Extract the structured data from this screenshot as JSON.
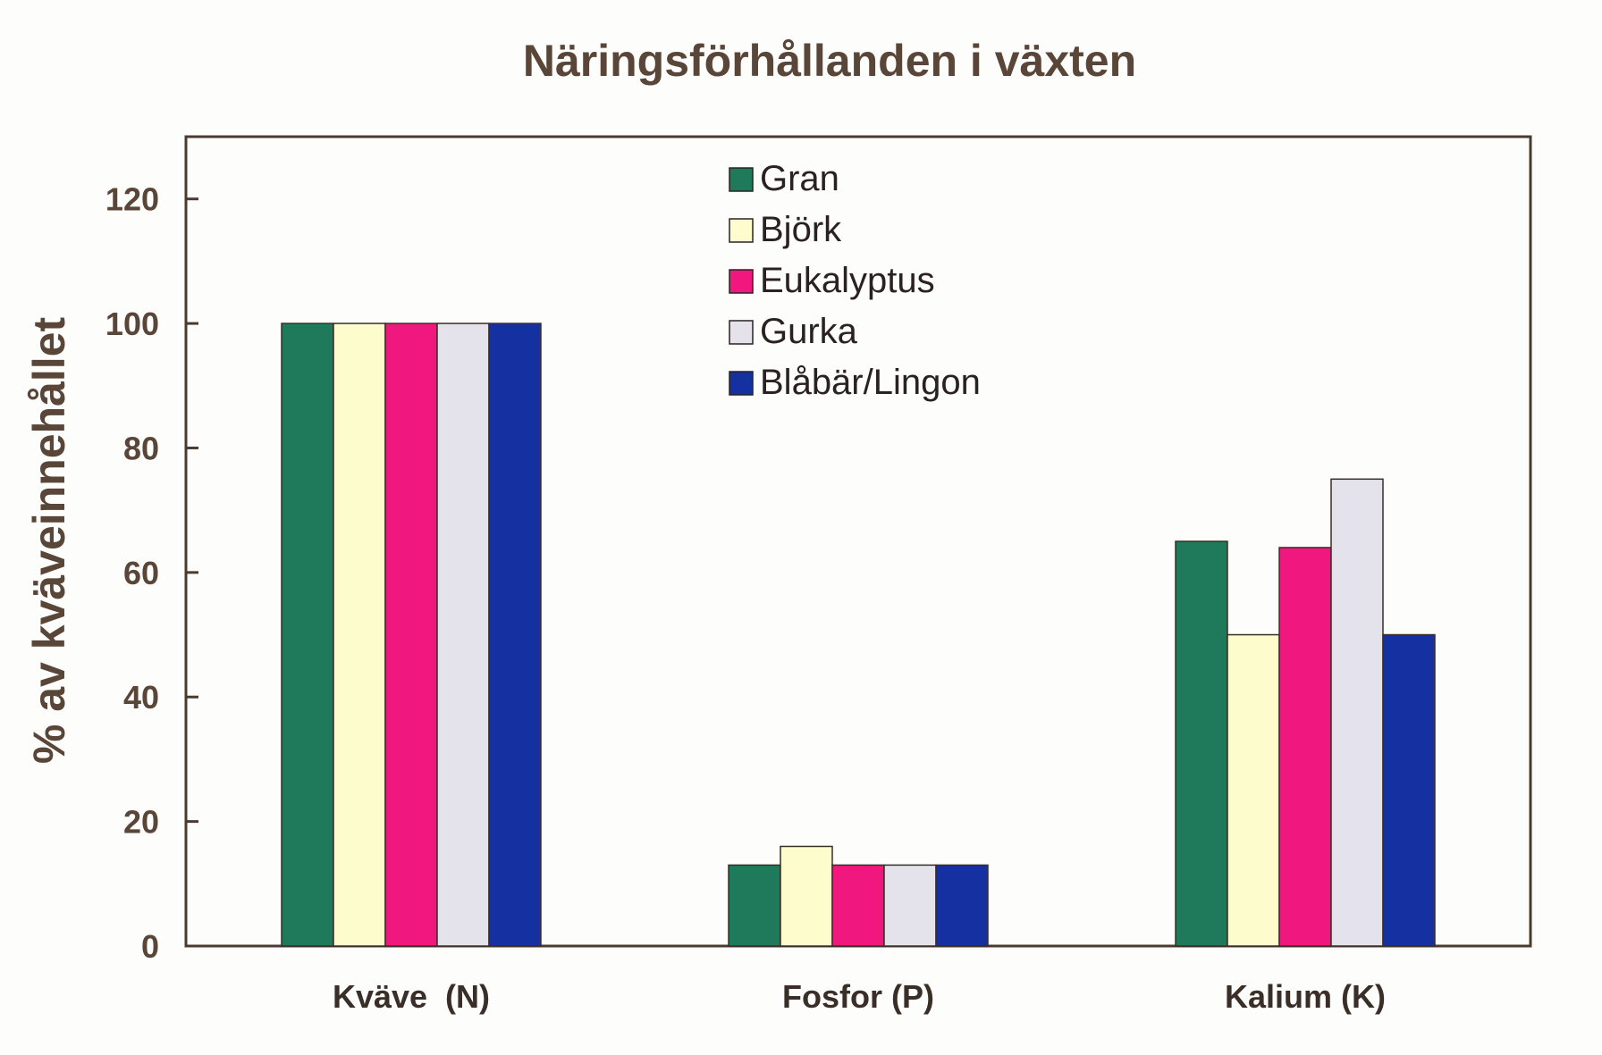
{
  "chart_data": {
    "type": "bar",
    "title": "Näringsförhållanden i växten",
    "xlabel": "",
    "ylabel": "% av kväveinnehållet",
    "ylim": [
      0,
      130
    ],
    "yticks": [
      0,
      20,
      40,
      60,
      80,
      100,
      120
    ],
    "categories": [
      "Kväve  (N)",
      "Fosfor (P)",
      "Kalium (K)"
    ],
    "series": [
      {
        "name": "Gran",
        "color": "#1e7a5a",
        "values": [
          100,
          13,
          65
        ]
      },
      {
        "name": "Björk",
        "color": "#fdfccc",
        "values": [
          100,
          16,
          50
        ]
      },
      {
        "name": "Eukalyptus",
        "color": "#f0187e",
        "values": [
          100,
          13,
          64
        ]
      },
      {
        "name": "Gurka",
        "color": "#e4e2ea",
        "values": [
          100,
          13,
          75
        ]
      },
      {
        "name": "Blåbär/Lingon",
        "color": "#1530a0",
        "values": [
          100,
          13,
          50
        ]
      }
    ],
    "legend_position": "top-center",
    "grid": false
  }
}
